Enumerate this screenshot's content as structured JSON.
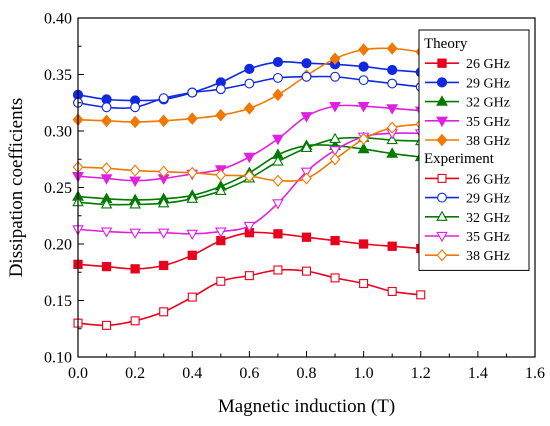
{
  "chart_data": {
    "type": "line",
    "title": "",
    "xlabel": "Magnetic induction (T)",
    "ylabel": "Dissipation coefficients",
    "xlim": [
      0.0,
      1.6
    ],
    "ylim": [
      0.1,
      0.4
    ],
    "xticks": [
      "0.0",
      "0.2",
      "0.4",
      "0.6",
      "0.8",
      "1.0",
      "1.2",
      "1.4",
      "1.6"
    ],
    "yticks": [
      "0.10",
      "0.15",
      "0.20",
      "0.25",
      "0.30",
      "0.35",
      "0.40"
    ],
    "grid": false,
    "legend_position": "top-right",
    "legend_groups": [
      "Theory",
      "Experiment"
    ],
    "x": [
      0.0,
      0.1,
      0.2,
      0.3,
      0.4,
      0.5,
      0.6,
      0.7,
      0.8,
      0.9,
      1.0,
      1.1,
      1.2
    ],
    "series": [
      {
        "name": "26 GHz",
        "group": "Theory",
        "color": "#e8001c",
        "marker": "square",
        "filled": true,
        "values": [
          0.182,
          0.18,
          0.178,
          0.181,
          0.19,
          0.203,
          0.21,
          0.209,
          0.206,
          0.203,
          0.2,
          0.198,
          0.196
        ]
      },
      {
        "name": "29 GHz",
        "group": "Theory",
        "color": "#1028e0",
        "marker": "circle",
        "filled": true,
        "values": [
          0.332,
          0.328,
          0.327,
          0.328,
          0.334,
          0.343,
          0.355,
          0.361,
          0.36,
          0.359,
          0.357,
          0.354,
          0.352
        ]
      },
      {
        "name": "32 GHz",
        "group": "Theory",
        "color": "#007a00",
        "marker": "triangle-up",
        "filled": true,
        "values": [
          0.242,
          0.24,
          0.239,
          0.24,
          0.243,
          0.251,
          0.263,
          0.279,
          0.287,
          0.287,
          0.284,
          0.28,
          0.277
        ]
      },
      {
        "name": "35 GHz",
        "group": "Theory",
        "color": "#e020e0",
        "marker": "triangle-down",
        "filled": true,
        "values": [
          0.26,
          0.258,
          0.256,
          0.258,
          0.262,
          0.266,
          0.277,
          0.293,
          0.313,
          0.322,
          0.322,
          0.32,
          0.318
        ]
      },
      {
        "name": "38 GHz",
        "group": "Theory",
        "color": "#f07800",
        "marker": "diamond",
        "filled": true,
        "values": [
          0.31,
          0.309,
          0.308,
          0.309,
          0.311,
          0.314,
          0.32,
          0.332,
          0.349,
          0.364,
          0.372,
          0.373,
          0.37
        ]
      },
      {
        "name": "26 GHz",
        "group": "Experiment",
        "color": "#e8001c",
        "marker": "square",
        "filled": false,
        "values": [
          0.13,
          0.128,
          0.132,
          0.14,
          0.153,
          0.167,
          0.172,
          0.177,
          0.176,
          0.17,
          0.165,
          0.158,
          0.155
        ]
      },
      {
        "name": "29 GHz",
        "group": "Experiment",
        "color": "#1028e0",
        "marker": "circle",
        "filled": false,
        "values": [
          0.325,
          0.321,
          0.321,
          0.329,
          0.334,
          0.337,
          0.342,
          0.347,
          0.348,
          0.348,
          0.345,
          0.342,
          0.339
        ]
      },
      {
        "name": "32 GHz",
        "group": "Experiment",
        "color": "#007a00",
        "marker": "triangle-up",
        "filled": false,
        "values": [
          0.237,
          0.235,
          0.235,
          0.236,
          0.24,
          0.247,
          0.258,
          0.273,
          0.285,
          0.293,
          0.294,
          0.292,
          0.291
        ]
      },
      {
        "name": "35 GHz",
        "group": "Experiment",
        "color": "#e020e0",
        "marker": "triangle-down",
        "filled": false,
        "values": [
          0.213,
          0.211,
          0.21,
          0.21,
          0.209,
          0.211,
          0.216,
          0.236,
          0.264,
          0.283,
          0.295,
          0.298,
          0.298
        ]
      },
      {
        "name": "38 GHz",
        "group": "Experiment",
        "color": "#f07800",
        "marker": "diamond",
        "filled": false,
        "values": [
          0.268,
          0.267,
          0.265,
          0.264,
          0.263,
          0.261,
          0.26,
          0.256,
          0.258,
          0.275,
          0.293,
          0.303,
          0.306
        ]
      }
    ]
  }
}
